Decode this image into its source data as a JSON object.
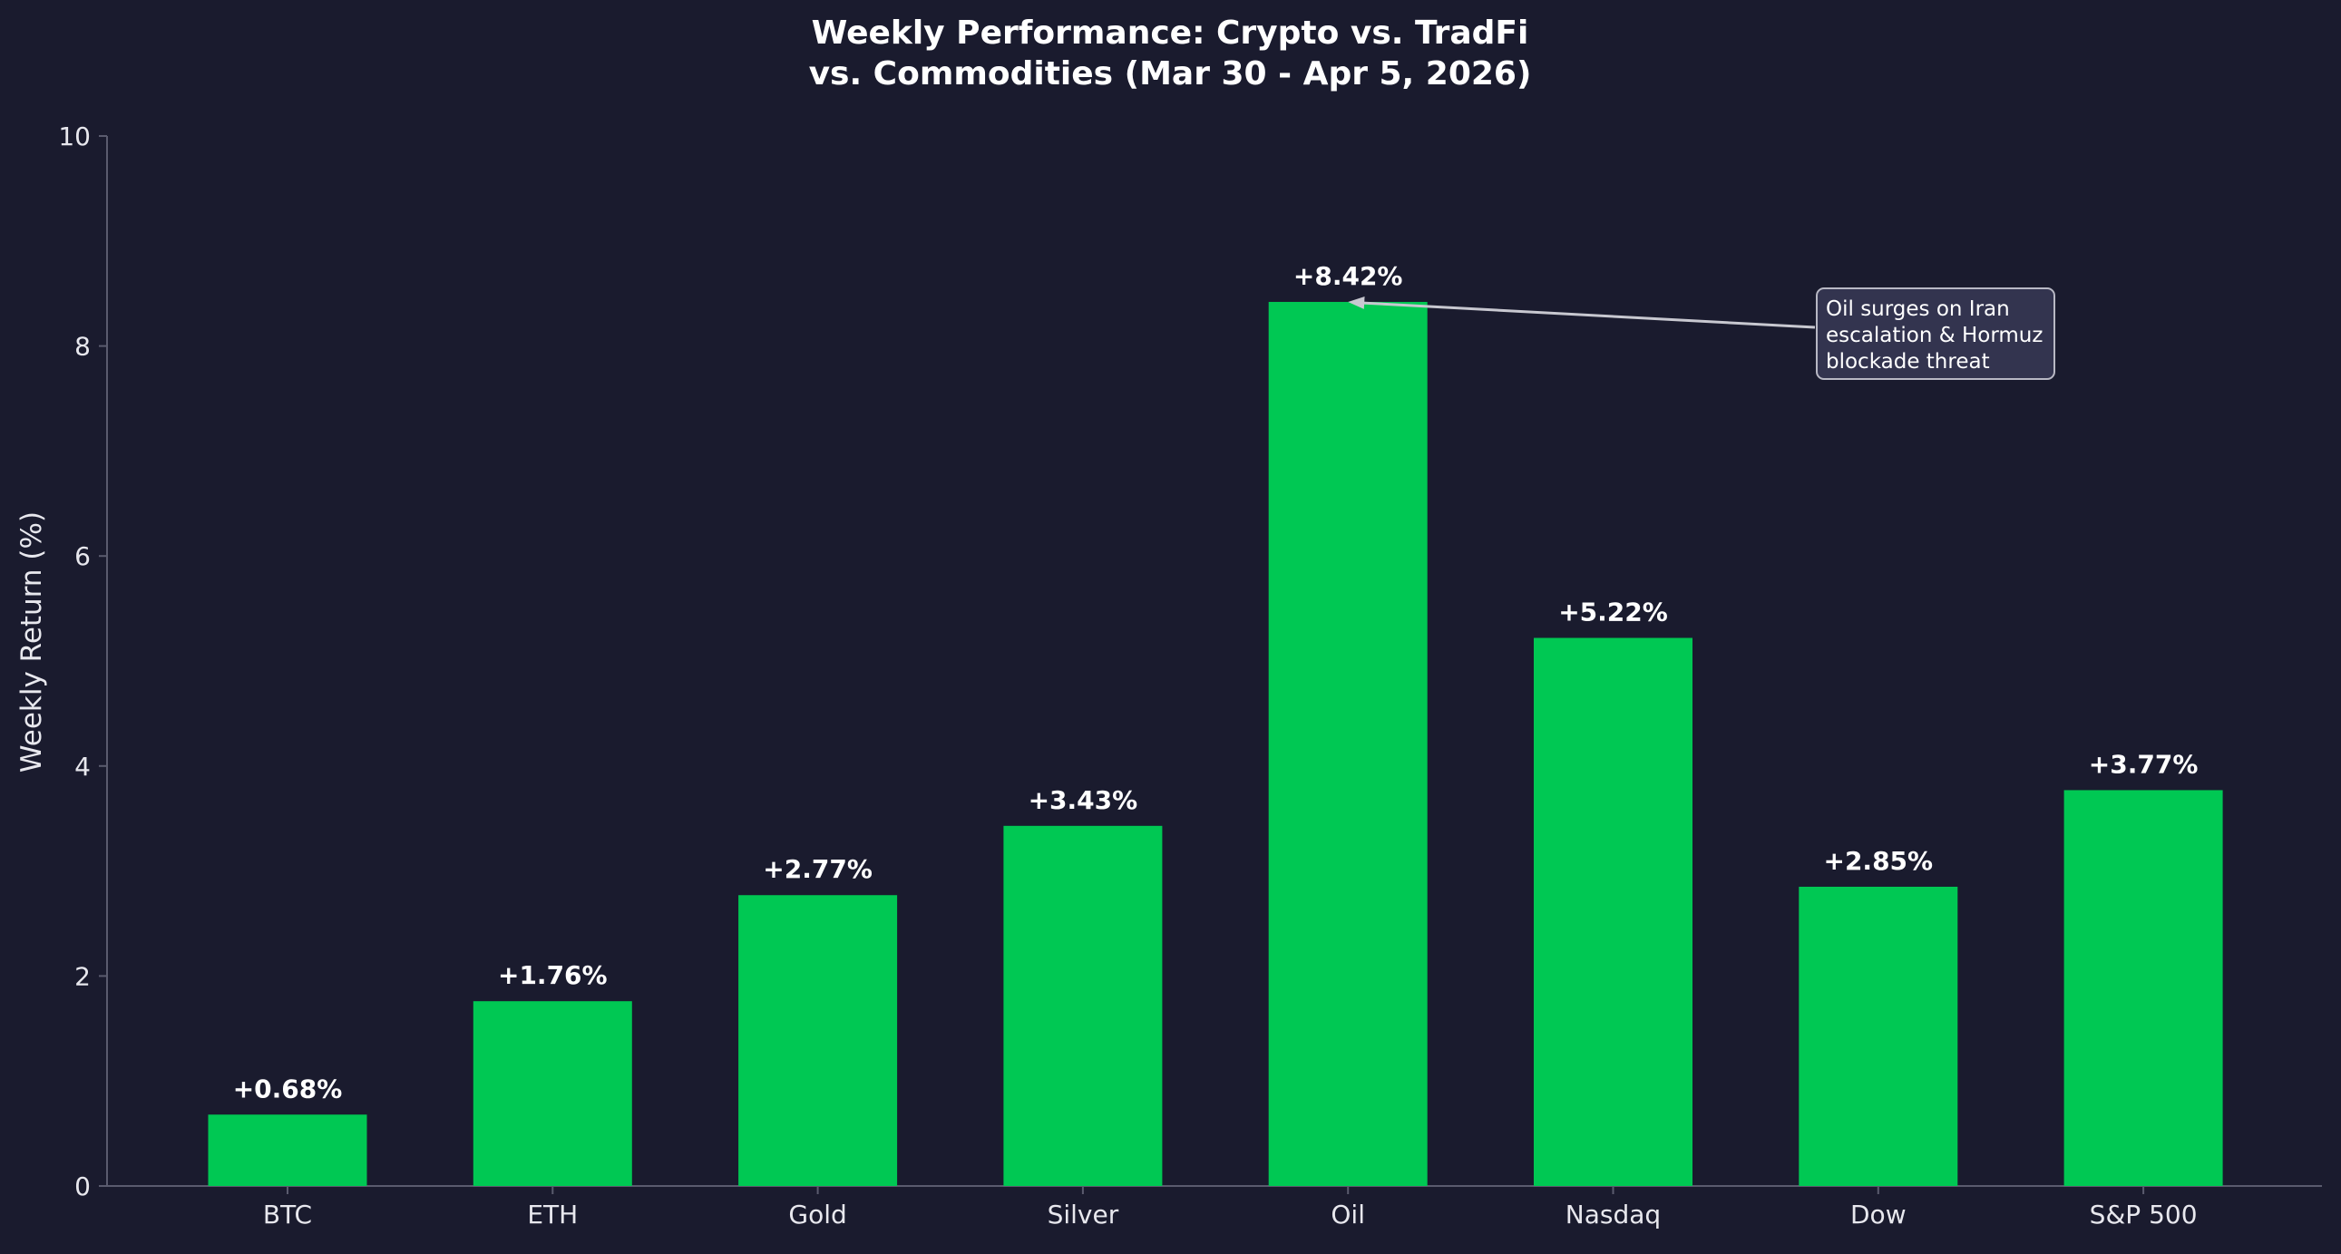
{
  "colors": {
    "background": "#1a1b2e",
    "bar": "#00c853",
    "text": "#ffffff",
    "axis": "#5a5b6e",
    "tick_text": "#e8e8ee",
    "annotation_box": "#33344f",
    "annotation_border": "#b8b8c4",
    "annotation_arrow": "#c8c8d0"
  },
  "chart_data": {
    "type": "bar",
    "title_lines": [
      "Weekly Performance: Crypto vs. TradFi",
      "vs. Commodities (Mar 30 - Apr 5, 2026)"
    ],
    "xlabel": "",
    "ylabel": "Weekly Return (%)",
    "ylim": [
      0,
      10
    ],
    "yticks": [
      0,
      2,
      4,
      6,
      8,
      10
    ],
    "grid": false,
    "categories": [
      "BTC",
      "ETH",
      "Gold",
      "Silver",
      "Oil",
      "Nasdaq",
      "Dow",
      "S&P 500"
    ],
    "values": [
      0.68,
      1.76,
      2.77,
      3.43,
      8.42,
      5.22,
      2.85,
      3.77
    ],
    "value_labels": [
      "+0.68%",
      "+1.76%",
      "+2.77%",
      "+3.43%",
      "+8.42%",
      "+5.22%",
      "+2.85%",
      "+3.77%"
    ],
    "annotation": {
      "lines": [
        "Oil surges on Iran",
        "escalation & Hormuz",
        "blockade threat"
      ],
      "points_to_category": "Oil",
      "points_to_value": 8.42
    }
  }
}
